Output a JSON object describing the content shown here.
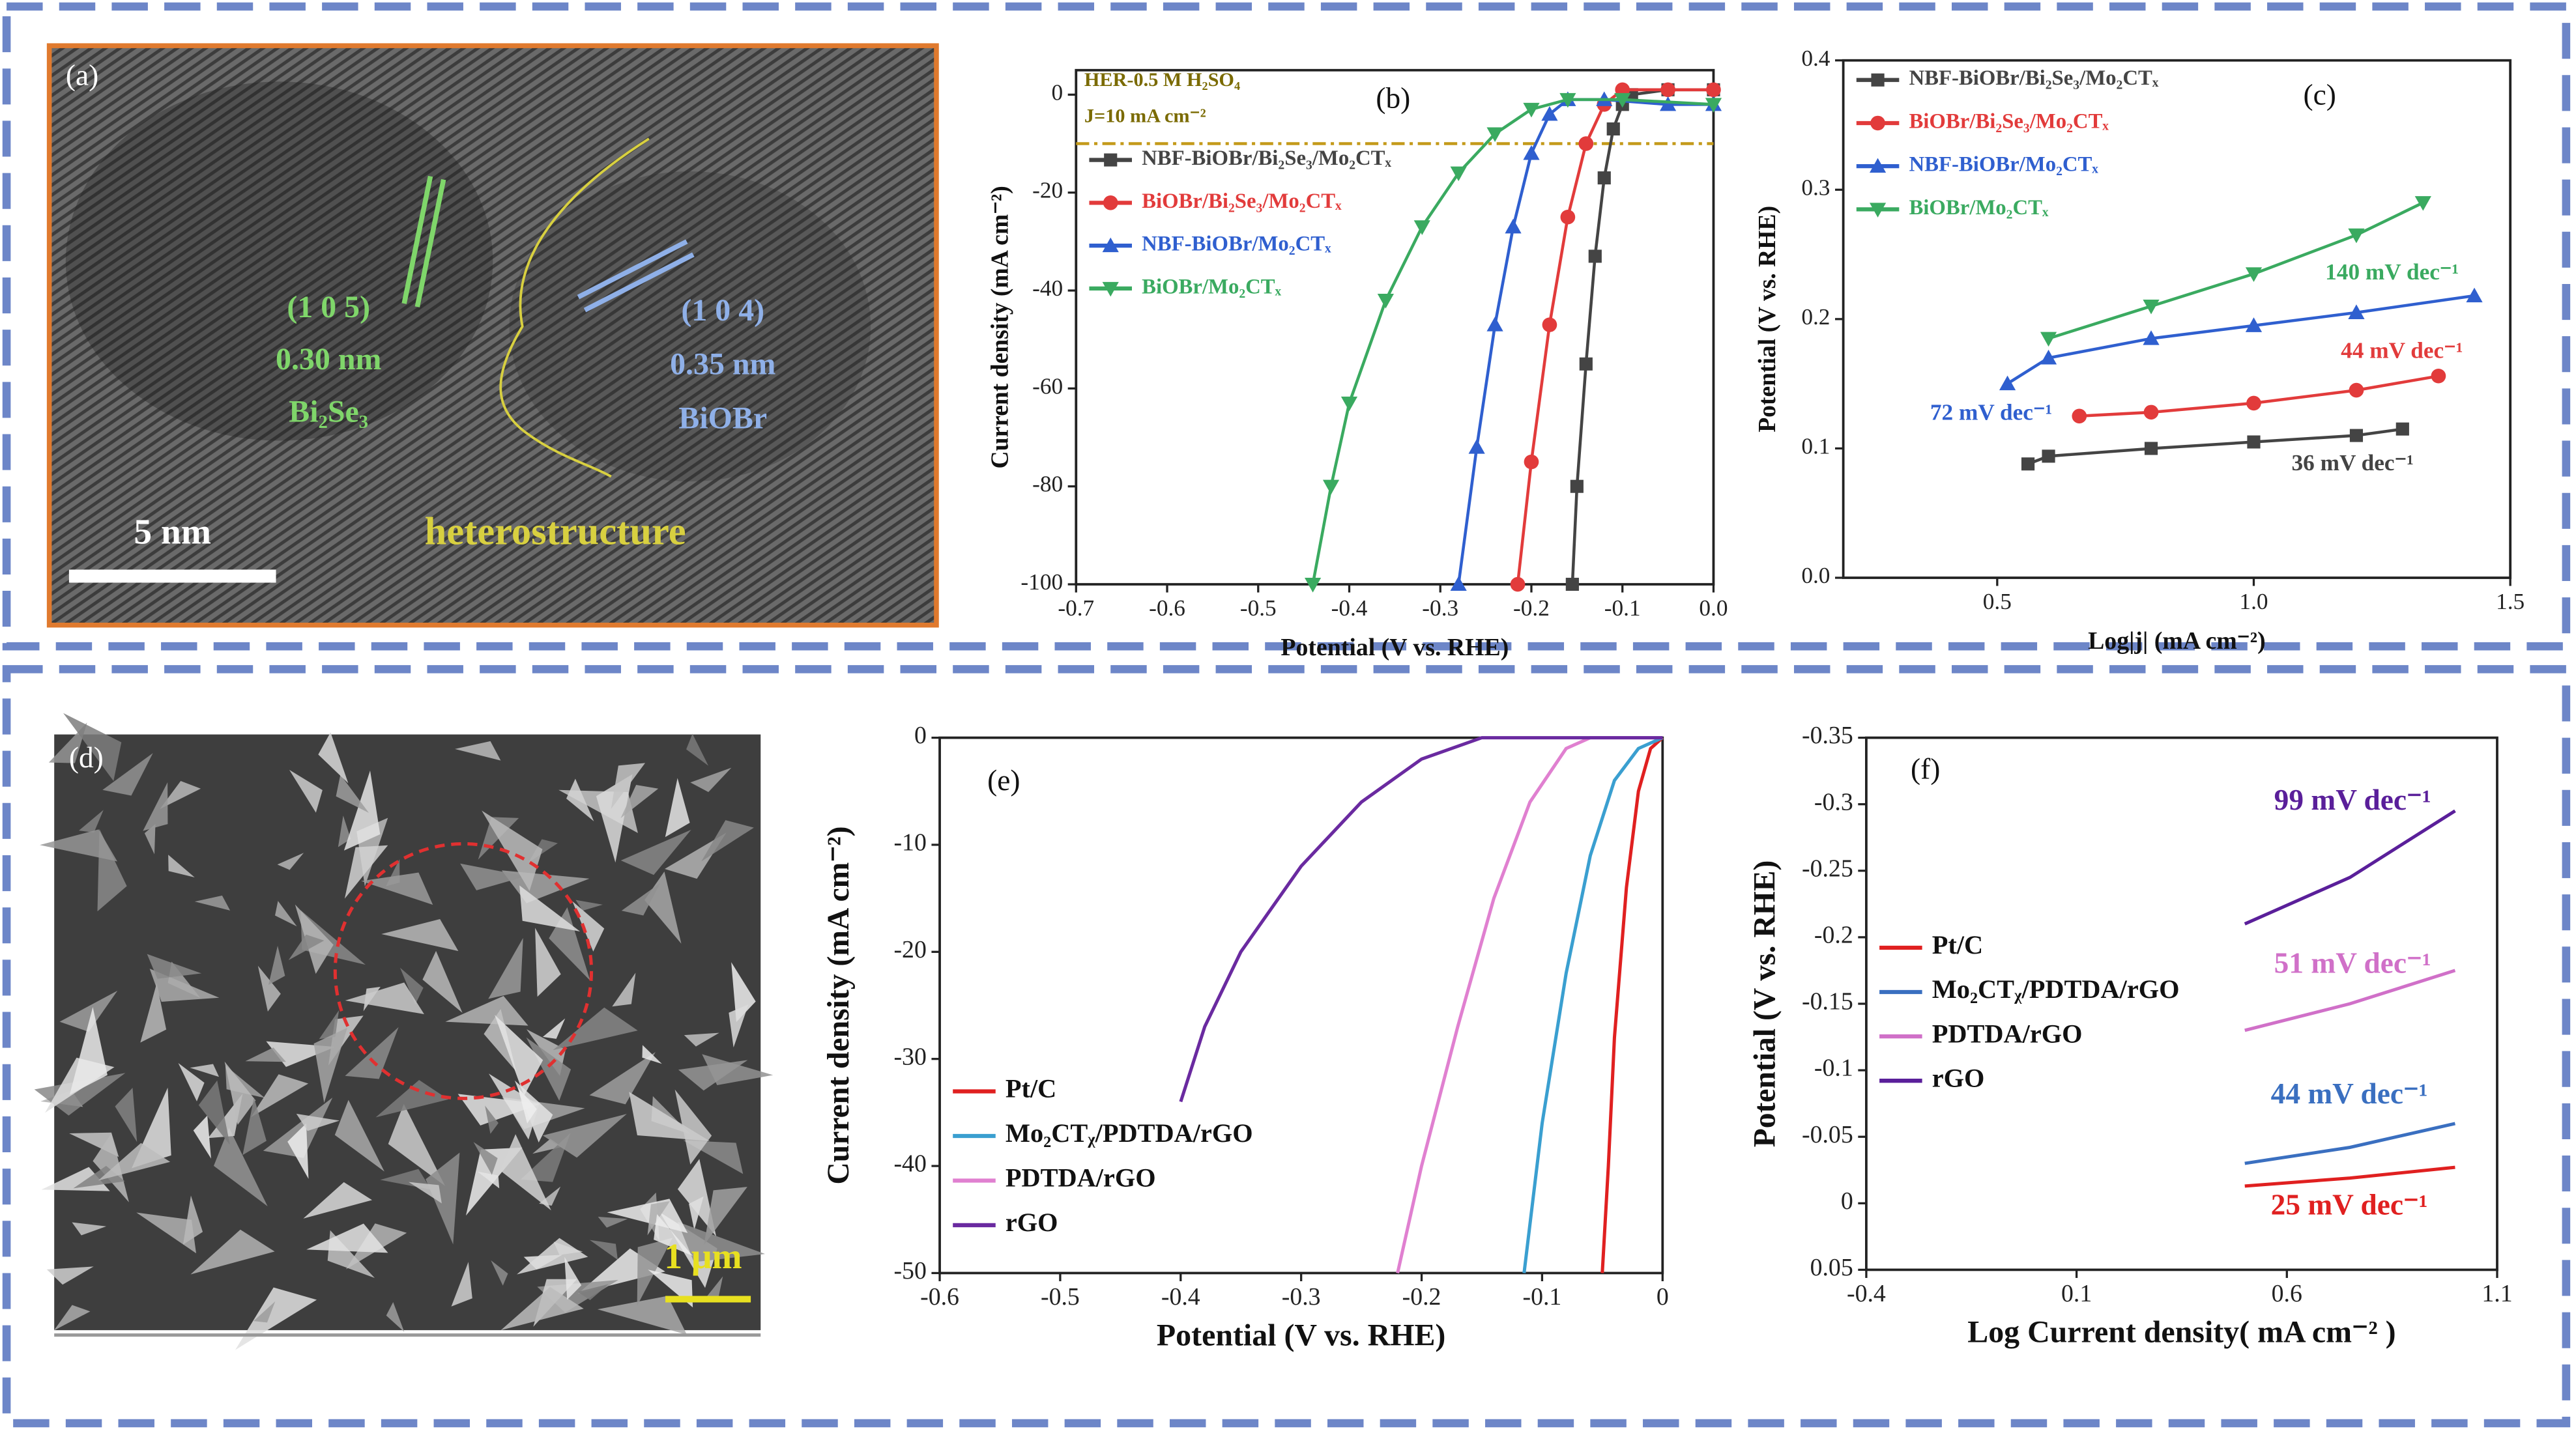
{
  "images": [
    {
      "label": "(a)",
      "texts": [
        "(1 0 5)",
        "0.30 nm",
        "Bi₂Se₃",
        "(1 0 4)",
        "0.35 nm",
        "BiOBr",
        "5 nm",
        "heterostructure"
      ]
    },
    {
      "label": "(d)",
      "texts": [
        "1 μm"
      ]
    }
  ],
  "chart_data": [
    {
      "type": "line",
      "title": "(b)",
      "annotations": [
        "HER-0.5 M H₂SO₄",
        "J=10 mA cm⁻²"
      ],
      "xlabel": "Potential (V vs. RHE)",
      "ylabel": "Current density (mA cm⁻²)",
      "xlim": [
        -0.7,
        0
      ],
      "xticks": [
        -0.7,
        -0.6,
        -0.5,
        -0.4,
        -0.3,
        -0.2,
        -0.1,
        {
          "value": 0,
          "label": "0.0"
        }
      ],
      "ylim": [
        -100,
        5
      ],
      "yticks": [
        -100,
        -80,
        -60,
        -40,
        -20,
        0
      ],
      "hline": -10,
      "hline_color": "#c49a1a",
      "legend": "upper left",
      "series": [
        {
          "name": "NBF-BiOBr/Bi₂Se₃/Mo₂CTₓ",
          "color": "#444444",
          "marker": "square",
          "x": [
            -0.155,
            -0.15,
            -0.14,
            -0.13,
            -0.12,
            -0.11,
            -0.1,
            -0.09,
            -0.05,
            0
          ],
          "values": [
            -100,
            -80,
            -55,
            -33,
            -17,
            -7,
            -2,
            0,
            1,
            1
          ]
        },
        {
          "name": "BiOBr/Bi₂Se₃/Mo₂CTₓ",
          "color": "#e23b3b",
          "marker": "circle",
          "x": [
            -0.215,
            -0.2,
            -0.18,
            -0.16,
            -0.14,
            -0.12,
            -0.1,
            -0.05,
            0
          ],
          "values": [
            -100,
            -75,
            -47,
            -25,
            -10,
            -2,
            1,
            1,
            1
          ]
        },
        {
          "name": "NBF-BiOBr/Mo₂CTₓ",
          "color": "#2f5fcf",
          "marker": "triangle-up",
          "x": [
            -0.28,
            -0.26,
            -0.24,
            -0.22,
            -0.2,
            -0.18,
            -0.16,
            -0.12,
            -0.05,
            0
          ],
          "values": [
            -100,
            -72,
            -47,
            -27,
            -12,
            -4,
            -1,
            -1,
            -2,
            -2
          ]
        },
        {
          "name": "BiOBr/Mo₂CTₓ",
          "color": "#3aaa60",
          "marker": "triangle-down",
          "x": [
            -0.44,
            -0.42,
            -0.4,
            -0.36,
            -0.32,
            -0.28,
            -0.24,
            -0.2,
            -0.16,
            -0.1,
            0
          ],
          "values": [
            -100,
            -80,
            -63,
            -42,
            -27,
            -16,
            -8,
            -3,
            -1,
            -1,
            -2
          ]
        }
      ]
    },
    {
      "type": "line",
      "title": "(c)",
      "xlabel": "Log|j| (mA cm⁻²)",
      "ylabel": "Potential (V vs. RHE)",
      "xlim": [
        0.2,
        1.5
      ],
      "xticks": [
        0.5,
        {
          "value": 1,
          "label": "1.0"
        },
        1.5
      ],
      "ylim": [
        0,
        0.4
      ],
      "yticks": [
        {
          "value": 0,
          "label": "0.0"
        },
        0.1,
        0.2,
        0.3,
        0.4
      ],
      "legend": "upper left",
      "series": [
        {
          "name": "NBF-BiOBr/Bi₂Se₃/Mo₂CTₓ",
          "color": "#444444",
          "marker": "square",
          "slope": "36 mV dec⁻¹",
          "x": [
            0.56,
            0.6,
            0.8,
            1.0,
            1.2,
            1.29
          ],
          "values": [
            0.088,
            0.094,
            0.1,
            0.105,
            0.11,
            0.115
          ]
        },
        {
          "name": "BiOBr/Bi₂Se₃/Mo₂CTₓ",
          "color": "#e23b3b",
          "marker": "circle",
          "slope": "44 mV dec⁻¹",
          "x": [
            0.66,
            0.8,
            1.0,
            1.2,
            1.36
          ],
          "values": [
            0.125,
            0.128,
            0.135,
            0.145,
            0.156
          ]
        },
        {
          "name": "NBF-BiOBr/Mo₂CTₓ",
          "color": "#2f5fcf",
          "marker": "triangle-up",
          "slope": "72 mV dec⁻¹",
          "x": [
            0.52,
            0.6,
            0.8,
            1.0,
            1.2,
            1.43
          ],
          "values": [
            0.15,
            0.17,
            0.185,
            0.195,
            0.205,
            0.218
          ]
        },
        {
          "name": "BiOBr/Mo₂CTₓ",
          "color": "#3aaa60",
          "marker": "triangle-down",
          "slope": "140 mV dec⁻¹",
          "x": [
            0.6,
            0.8,
            1.0,
            1.2,
            1.33
          ],
          "values": [
            0.185,
            0.21,
            0.235,
            0.265,
            0.29
          ]
        }
      ]
    },
    {
      "type": "line",
      "title": "(e)",
      "xlabel": "Potential (V vs. RHE)",
      "ylabel": "Current density (mA cm⁻²)",
      "xlim": [
        -0.6,
        0
      ],
      "xticks": [
        -0.6,
        -0.5,
        -0.4,
        -0.3,
        -0.2,
        -0.1,
        0
      ],
      "ylim": [
        -50,
        0
      ],
      "yticks": [
        -50,
        -40,
        -30,
        -20,
        -10,
        0
      ],
      "legend": "lower left",
      "series": [
        {
          "name": "Pt/C",
          "color": "#e02020",
          "marker": "none",
          "x": [
            -0.05,
            -0.045,
            -0.04,
            -0.03,
            -0.02,
            -0.01,
            0
          ],
          "values": [
            -50,
            -40,
            -28,
            -14,
            -5,
            -1,
            0
          ]
        },
        {
          "name": "Mo₂CTᵪ/PDTDA/rGO",
          "color": "#3a9fd0",
          "marker": "none",
          "x": [
            -0.115,
            -0.1,
            -0.08,
            -0.06,
            -0.04,
            -0.02,
            0
          ],
          "values": [
            -50,
            -36,
            -22,
            -11,
            -4,
            -1,
            0
          ]
        },
        {
          "name": "PDTDA/rGO",
          "color": "#e080d0",
          "marker": "none",
          "x": [
            -0.22,
            -0.2,
            -0.17,
            -0.14,
            -0.11,
            -0.08,
            -0.06,
            -0.04,
            0
          ],
          "values": [
            -50,
            -40,
            -27,
            -15,
            -6,
            -1,
            0,
            0,
            0
          ]
        },
        {
          "name": "rGO",
          "color": "#6a2aa0",
          "marker": "none",
          "x": [
            -0.4,
            -0.38,
            -0.35,
            -0.3,
            -0.25,
            -0.2,
            -0.15,
            -0.12,
            -0.1,
            0
          ],
          "values": [
            -34,
            -27,
            -20,
            -12,
            -6,
            -2,
            0,
            0,
            0,
            0
          ]
        }
      ]
    },
    {
      "type": "line",
      "title": "(f)",
      "xlabel": "Log Current density( mA cm⁻² )",
      "ylabel": "Potential (V vs. RHE)",
      "xlim": [
        -0.4,
        1.1
      ],
      "xticks": [
        -0.4,
        0.1,
        0.6,
        1.1
      ],
      "ylim": [
        0.05,
        -0.35
      ],
      "yticks": [
        -0.35,
        -0.3,
        -0.25,
        -0.2,
        -0.15,
        -0.1,
        -0.05,
        0,
        0.05
      ],
      "legend": "center left",
      "series": [
        {
          "name": "Pt/C",
          "color": "#e02020",
          "marker": "none",
          "slope": "25 mV dec⁻¹",
          "x": [
            0.5,
            0.75,
            1.0
          ],
          "values": [
            -0.013,
            -0.019,
            -0.027
          ]
        },
        {
          "name": "Mo₂CTᵪ/PDTDA/rGO",
          "color": "#3a6fc0",
          "marker": "none",
          "slope": "44 mV dec⁻¹",
          "x": [
            0.5,
            0.75,
            1.0
          ],
          "values": [
            -0.03,
            -0.042,
            -0.06
          ]
        },
        {
          "name": "PDTDA/rGO",
          "color": "#d070c8",
          "marker": "none",
          "slope": "51 mV dec⁻¹",
          "x": [
            0.5,
            0.75,
            1.0
          ],
          "values": [
            -0.13,
            -0.15,
            -0.175
          ]
        },
        {
          "name": "rGO",
          "color": "#5a1f9a",
          "marker": "none",
          "slope": "99 mV dec⁻¹",
          "x": [
            0.5,
            0.75,
            1.0
          ],
          "values": [
            -0.21,
            -0.245,
            -0.295
          ]
        }
      ]
    }
  ]
}
